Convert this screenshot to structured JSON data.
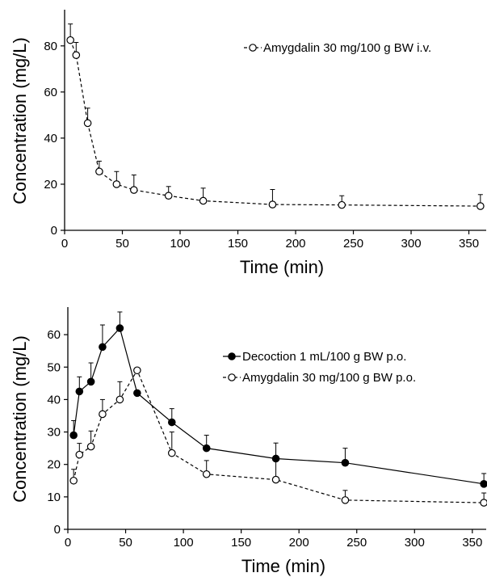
{
  "chart_data": [
    {
      "type": "line",
      "title": "",
      "xlabel": "Time (min)",
      "ylabel": "Concentration (mg/L)",
      "xlim": [
        0,
        365
      ],
      "ylim": [
        0,
        95
      ],
      "xticks": [
        0,
        50,
        100,
        150,
        200,
        250,
        300,
        350
      ],
      "yticks": [
        0,
        20,
        40,
        60,
        80
      ],
      "grid": false,
      "legend_position": "top-right",
      "series": [
        {
          "name": "Amygdalin 30 mg/100 g BW i.v.",
          "marker": "open-circle",
          "line": "dashed",
          "x": [
            5,
            10,
            20,
            30,
            45,
            60,
            90,
            120,
            180,
            240,
            360
          ],
          "y": [
            82.5,
            76.0,
            46.5,
            25.5,
            20.0,
            17.5,
            15.0,
            12.8,
            11.2,
            11.0,
            10.5
          ],
          "err": [
            7.0,
            5.5,
            6.5,
            4.5,
            5.5,
            6.5,
            4.0,
            5.5,
            6.5,
            4.0,
            5.0
          ]
        }
      ]
    },
    {
      "type": "line",
      "title": "",
      "xlabel": "Time (min)",
      "ylabel": "Concentration (mg/L)",
      "xlim": [
        0,
        362
      ],
      "ylim": [
        0,
        68
      ],
      "xticks": [
        0,
        50,
        100,
        150,
        200,
        250,
        300,
        350
      ],
      "yticks": [
        0,
        10,
        20,
        30,
        40,
        50,
        60
      ],
      "grid": false,
      "legend_position": "top-right",
      "series": [
        {
          "name": "Decoction 1 mL/100 g BW p.o.",
          "marker": "filled-circle",
          "line": "solid",
          "x": [
            5,
            10,
            20,
            30,
            45,
            60,
            90,
            120,
            180,
            240,
            360
          ],
          "y": [
            29.0,
            42.5,
            45.5,
            56.2,
            62.0,
            42.0,
            33.0,
            25.0,
            21.8,
            20.5,
            14.0
          ],
          "err": [
            4.5,
            4.5,
            5.8,
            6.8,
            5.0,
            0,
            4.2,
            4.0,
            4.8,
            4.5,
            3.2
          ]
        },
        {
          "name": "Amygdalin 30 mg/100 g BW p.o.",
          "marker": "open-circle",
          "line": "dashed",
          "x": [
            5,
            10,
            20,
            30,
            45,
            60,
            90,
            120,
            180,
            240,
            360
          ],
          "y": [
            15.0,
            23.0,
            25.5,
            35.5,
            40.0,
            49.0,
            23.5,
            17.0,
            15.3,
            9.0,
            8.2
          ],
          "err": [
            3.5,
            3.5,
            4.8,
            4.5,
            5.5,
            0,
            6.5,
            4.2,
            5.8,
            3.0,
            3.0
          ]
        }
      ]
    }
  ]
}
